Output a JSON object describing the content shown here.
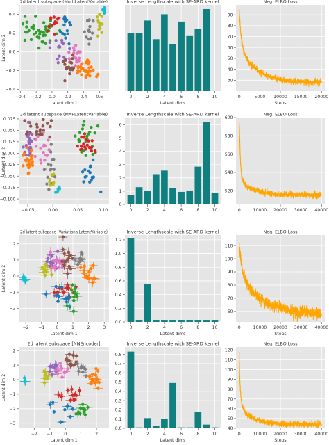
{
  "figure": {
    "background": "#ffffff",
    "panel_bg": "#e5e5e5",
    "grid_color": "#ffffff"
  },
  "colors": {
    "bar": "#0f7f80",
    "loss": "#ffa500",
    "clusters": [
      "#1f77b4",
      "#ff7f0e",
      "#2ca02c",
      "#d62728",
      "#9467bd",
      "#8c564b",
      "#e377c2",
      "#7f7f7f",
      "#bcbd22",
      "#17becf"
    ]
  },
  "chart_data": [
    {
      "type": "scatter",
      "row": 0,
      "col": 0,
      "title": "2d latent subspace (MultiLatentVariable)",
      "xlabel": "Latent dim 1",
      "ylabel": "Latent dim 2",
      "xlim": [
        -0.42,
        0.72
      ],
      "ylim": [
        -0.42,
        0.5
      ],
      "xticks": [
        -0.4,
        -0.2,
        0.0,
        0.2,
        0.4,
        0.6
      ],
      "xtick_labels": [
        "−0.4",
        "−0.2",
        "0.0",
        "0.2",
        "0.4",
        "0.6"
      ],
      "yticks": [
        -0.4,
        -0.2,
        0.0,
        0.2,
        0.4
      ],
      "ytick_labels": [
        "−0.4",
        "−0.2",
        "0.0",
        "0.2",
        "0.4"
      ],
      "errorbars": false,
      "clusters": [
        {
          "color_index": 2,
          "center": [
            -0.17,
            0.21
          ],
          "spread": [
            0.1,
            0.09
          ],
          "n": 42
        },
        {
          "color_index": 3,
          "center": [
            0.01,
            0.3
          ],
          "spread": [
            0.04,
            0.05
          ],
          "n": 14
        },
        {
          "color_index": 0,
          "center": [
            0.17,
            0.27
          ],
          "spread": [
            0.04,
            0.08
          ],
          "n": 18
        },
        {
          "color_index": 4,
          "center": [
            0.07,
            0.02
          ],
          "spread": [
            0.06,
            0.05
          ],
          "n": 16
        },
        {
          "color_index": 6,
          "center": [
            0.3,
            -0.03
          ],
          "spread": [
            0.05,
            0.06
          ],
          "n": 20
        },
        {
          "color_index": 5,
          "center": [
            0.22,
            -0.17
          ],
          "spread": [
            0.05,
            0.06
          ],
          "n": 18
        },
        {
          "color_index": 1,
          "center": [
            0.43,
            -0.19
          ],
          "spread": [
            0.07,
            0.05
          ],
          "n": 34
        },
        {
          "color_index": 7,
          "center": [
            0.45,
            0.22
          ],
          "spread": [
            0.04,
            0.06
          ],
          "n": 14
        },
        {
          "color_index": 8,
          "center": [
            0.6,
            0.34
          ],
          "spread": [
            0.02,
            0.08
          ],
          "n": 14
        },
        {
          "color_index": 9,
          "center": [
            0.66,
            0.45
          ],
          "spread": [
            0.01,
            0.02
          ],
          "n": 6
        }
      ]
    },
    {
      "type": "bar",
      "row": 0,
      "col": 1,
      "title": "Inverse Lengthscale with SE-ARD kernel",
      "xlabel": "Latent dims",
      "ylabel": "",
      "categories": [
        0,
        1,
        2,
        3,
        4,
        5,
        6,
        7,
        8,
        9
      ],
      "values": [
        0.56,
        0.56,
        0.68,
        0.5,
        0.74,
        0.45,
        0.67,
        0.53,
        0.6,
        0.79
      ],
      "xlim": [
        -0.7,
        10.7
      ],
      "ylim": [
        0,
        0.83
      ],
      "xticks": [
        0,
        2,
        4,
        6,
        8,
        10
      ],
      "xtick_labels": [
        "0",
        "2",
        "4",
        "6",
        "8",
        "10"
      ],
      "yticks": [],
      "ytick_labels": []
    },
    {
      "type": "line",
      "row": 0,
      "col": 2,
      "title": "Neg. ELBO Loss",
      "xlabel": "Steps",
      "ylabel": "",
      "xlim": [
        -800,
        20800
      ],
      "ylim": [
        20,
        99
      ],
      "xticks": [
        0,
        5000,
        10000,
        15000,
        20000
      ],
      "xtick_labels": [
        "0",
        "5000",
        "10000",
        "15000",
        "20000"
      ],
      "yticks": [
        30,
        40,
        50,
        60,
        70,
        80,
        90
      ],
      "ytick_labels": [
        "30",
        "40",
        "50",
        "60",
        "70",
        "80",
        "90"
      ],
      "curve": {
        "x_max": 20000,
        "start": 95,
        "final": 28,
        "amp1": 32,
        "tau1": 420,
        "amp2": 35,
        "tau2": 3800,
        "noise": 1.4
      }
    },
    {
      "type": "scatter",
      "row": 1,
      "col": 0,
      "title": "2d latent subspace (MAPLatentVariable)",
      "xlabel": "",
      "ylabel": "Latent dim 2",
      "xlim": [
        -0.068,
        0.112
      ],
      "ylim": [
        -0.112,
        0.078
      ],
      "xticks": [
        -0.05,
        0.0,
        0.05,
        0.1
      ],
      "xtick_labels": [
        "−0.05",
        "0.00",
        "0.05",
        "0.10"
      ],
      "yticks": [
        -0.1,
        -0.075,
        -0.05,
        -0.025,
        0.0,
        0.025,
        0.05,
        0.075
      ],
      "ytick_labels": [
        "−0.100",
        "−0.075",
        "−0.050",
        "−0.025",
        "0.000",
        "0.025",
        "0.050",
        "0.075"
      ],
      "errorbars": false,
      "clusters": [
        {
          "color_index": 5,
          "center": [
            -0.03,
            0.05
          ],
          "spread": [
            0.015,
            0.012
          ],
          "n": 26
        },
        {
          "color_index": 4,
          "center": [
            -0.048,
            0.02
          ],
          "spread": [
            0.006,
            0.018
          ],
          "n": 22
        },
        {
          "color_index": 1,
          "center": [
            -0.05,
            -0.015
          ],
          "spread": [
            0.006,
            0.013
          ],
          "n": 24
        },
        {
          "color_index": 6,
          "center": [
            -0.02,
            0.008
          ],
          "spread": [
            0.012,
            0.02
          ],
          "n": 20
        },
        {
          "color_index": 7,
          "center": [
            -0.003,
            -0.03
          ],
          "spread": [
            0.006,
            0.02
          ],
          "n": 16
        },
        {
          "color_index": 8,
          "center": [
            0.002,
            -0.062
          ],
          "spread": [
            0.005,
            0.012
          ],
          "n": 8
        },
        {
          "color_index": 9,
          "center": [
            0.008,
            -0.078
          ],
          "spread": [
            0.005,
            0.007
          ],
          "n": 6
        },
        {
          "color_index": 2,
          "center": [
            0.07,
            0.035
          ],
          "spread": [
            0.012,
            0.02
          ],
          "n": 24
        },
        {
          "color_index": 3,
          "center": [
            0.065,
            0.015
          ],
          "spread": [
            0.012,
            0.016
          ],
          "n": 20
        },
        {
          "color_index": 0,
          "center": [
            0.078,
            -0.05
          ],
          "spread": [
            0.012,
            0.017
          ],
          "n": 16
        }
      ]
    },
    {
      "type": "bar",
      "row": 1,
      "col": 1,
      "title": "Inverse Lengthscale with SE-ARD kernel",
      "xlabel": "",
      "ylabel": "",
      "categories": [
        0,
        1,
        2,
        3,
        4,
        5,
        6,
        7,
        8,
        9,
        10
      ],
      "values": [
        0.72,
        1.3,
        1.02,
        2.28,
        2.55,
        1.22,
        0.95,
        1.05,
        2.85,
        6.22,
        0.85
      ],
      "xlim": [
        -0.7,
        10.7
      ],
      "ylim": [
        0,
        6.55
      ],
      "xticks": [
        0,
        2,
        4,
        6,
        8,
        10
      ],
      "xtick_labels": [
        "0",
        "2",
        "4",
        "6",
        "8",
        "10"
      ],
      "yticks": [
        0,
        1,
        2,
        3,
        4,
        5,
        6
      ],
      "ytick_labels": [
        "0",
        "1",
        "2",
        "3",
        "4",
        "5",
        "6"
      ]
    },
    {
      "type": "line",
      "row": 1,
      "col": 2,
      "title": "Neg. ELBO Loss",
      "xlabel": "",
      "ylabel": "",
      "xlim": [
        -1600,
        41600
      ],
      "ylim": [
        505,
        600
      ],
      "xticks": [
        0,
        10000,
        20000,
        30000,
        40000
      ],
      "xtick_labels": [
        "0",
        "10000",
        "20000",
        "30000",
        "40000"
      ],
      "yticks": [
        520,
        540,
        560,
        580,
        600
      ],
      "ytick_labels": [
        "520",
        "540",
        "560",
        "580",
        "600"
      ],
      "curve": {
        "x_max": 40000,
        "start": 595,
        "final": 515,
        "amp1": 62,
        "tau1": 550,
        "amp2": 18,
        "tau2": 7000,
        "noise": 1.6
      }
    },
    {
      "type": "scatter",
      "row": 2,
      "col": 0,
      "title": "2d latent subspace (VariationalLatentVariable)",
      "xlabel": "Latent dim 1",
      "ylabel": "Latent dim 2",
      "xlim": [
        -2.45,
        3.3
      ],
      "ylim": [
        -2.85,
        2.55
      ],
      "xticks": [
        -2,
        -1,
        0,
        1,
        2,
        3
      ],
      "xtick_labels": [
        "−2",
        "−1",
        "0",
        "1",
        "2",
        "3"
      ],
      "yticks": [
        -2,
        -1,
        0,
        1,
        2
      ],
      "ytick_labels": [
        "−2",
        "−1",
        "0",
        "1",
        "2"
      ],
      "errorbars": true,
      "clusters": [
        {
          "color_index": 9,
          "center": [
            -2.1,
            -0.3
          ],
          "spread": [
            0.05,
            0.15
          ],
          "n": 6
        },
        {
          "color_index": 8,
          "center": [
            -0.7,
            0.5
          ],
          "spread": [
            0.22,
            0.3
          ],
          "n": 10
        },
        {
          "color_index": 4,
          "center": [
            -0.3,
            0.8
          ],
          "spread": [
            0.22,
            0.3
          ],
          "n": 12
        },
        {
          "color_index": 6,
          "center": [
            0.0,
            0.7
          ],
          "spread": [
            0.28,
            0.3
          ],
          "n": 14
        },
        {
          "color_index": 5,
          "center": [
            0.6,
            1.2
          ],
          "spread": [
            0.2,
            0.4
          ],
          "n": 16
        },
        {
          "color_index": 7,
          "center": [
            1.4,
            1.0
          ],
          "spread": [
            0.2,
            0.25
          ],
          "n": 8
        },
        {
          "color_index": 1,
          "center": [
            2.0,
            0.2
          ],
          "spread": [
            0.3,
            0.5
          ],
          "n": 16
        },
        {
          "color_index": 3,
          "center": [
            0.5,
            -0.9
          ],
          "spread": [
            0.28,
            0.28
          ],
          "n": 14
        },
        {
          "color_index": 0,
          "center": [
            0.3,
            -1.3
          ],
          "spread": [
            0.35,
            0.3
          ],
          "n": 12
        },
        {
          "color_index": 2,
          "center": [
            1.1,
            -1.1
          ],
          "spread": [
            0.2,
            0.35
          ],
          "n": 10
        }
      ]
    },
    {
      "type": "bar",
      "row": 2,
      "col": 1,
      "title": "Inverse Lengthscale with SE-ARD kernel",
      "xlabel": "Latent dims",
      "ylabel": "",
      "categories": [
        0,
        1,
        2,
        3,
        4,
        5,
        6,
        7,
        8,
        9,
        10
      ],
      "values": [
        1.22,
        0.03,
        0.55,
        0.03,
        0.03,
        0.03,
        0.03,
        0.03,
        0.03,
        0.03,
        0.03
      ],
      "xlim": [
        -0.7,
        10.7
      ],
      "ylim": [
        0,
        1.27
      ],
      "xticks": [
        0,
        2,
        4,
        6,
        8,
        10
      ],
      "xtick_labels": [
        "0",
        "2",
        "4",
        "6",
        "8",
        "10"
      ],
      "yticks": [
        0.0,
        0.2,
        0.4,
        0.6,
        0.8,
        1.0,
        1.2
      ],
      "ytick_labels": [
        "0.0",
        "0.2",
        "0.4",
        "0.6",
        "0.8",
        "1.0",
        "1.2"
      ]
    },
    {
      "type": "line",
      "row": 2,
      "col": 2,
      "title": "Neg. ELBO Loss",
      "xlabel": "Steps",
      "ylabel": "",
      "xlim": [
        -1600,
        41600
      ],
      "ylim": [
        52,
        118
      ],
      "xticks": [
        0,
        10000,
        20000,
        30000,
        40000
      ],
      "xtick_labels": [
        "0",
        "10000",
        "20000",
        "30000",
        "40000"
      ],
      "yticks": [
        60,
        70,
        80,
        90,
        100,
        110
      ],
      "ytick_labels": [
        "60",
        "70",
        "80",
        "90",
        "100",
        "110"
      ],
      "curve": {
        "x_max": 40000,
        "start": 112,
        "final": 57,
        "amp1": 22,
        "tau1": 1500,
        "amp2": 30,
        "tau2": 12000,
        "noise": 2.2
      }
    },
    {
      "type": "scatter",
      "row": 3,
      "col": 0,
      "title": "2d latent subspace [NNEncoder]",
      "xlabel": "Latent dim 1",
      "ylabel": "Latent dim 2",
      "xlim": [
        -3.0,
        2.8
      ],
      "ylim": [
        -3.35,
        2.25
      ],
      "xticks": [
        -2,
        -1,
        0,
        1,
        2
      ],
      "xtick_labels": [
        "−2",
        "−1",
        "0",
        "1",
        "2"
      ],
      "yticks": [
        -3,
        -2,
        -1,
        0,
        1,
        2
      ],
      "ytick_labels": [
        "−3",
        "−2",
        "−1",
        "0",
        "1",
        "2"
      ],
      "errorbars": true,
      "clusters": [
        {
          "color_index": 9,
          "center": [
            -2.6,
            -0.1
          ],
          "spread": [
            0.04,
            0.12
          ],
          "n": 5
        },
        {
          "color_index": 8,
          "center": [
            -1.2,
            0.2
          ],
          "spread": [
            0.15,
            0.35
          ],
          "n": 9
        },
        {
          "color_index": 4,
          "center": [
            -0.8,
            0.8
          ],
          "spread": [
            0.2,
            0.25
          ],
          "n": 10
        },
        {
          "color_index": 6,
          "center": [
            -0.3,
            0.6
          ],
          "spread": [
            0.25,
            0.3
          ],
          "n": 10
        },
        {
          "color_index": 5,
          "center": [
            0.5,
            1.3
          ],
          "spread": [
            0.25,
            0.3
          ],
          "n": 14
        },
        {
          "color_index": 7,
          "center": [
            1.0,
            0.7
          ],
          "spread": [
            0.2,
            0.25
          ],
          "n": 8
        },
        {
          "color_index": 1,
          "center": [
            1.9,
            0.2
          ],
          "spread": [
            0.25,
            0.45
          ],
          "n": 14
        },
        {
          "color_index": 3,
          "center": [
            0.3,
            -1.1
          ],
          "spread": [
            0.3,
            0.25
          ],
          "n": 12
        },
        {
          "color_index": 0,
          "center": [
            -0.4,
            -2.0
          ],
          "spread": [
            0.35,
            0.35
          ],
          "n": 10
        },
        {
          "color_index": 2,
          "center": [
            1.0,
            -2.0
          ],
          "spread": [
            0.25,
            0.4
          ],
          "n": 12
        }
      ]
    },
    {
      "type": "bar",
      "row": 3,
      "col": 1,
      "title": "Inverse Lengthscale with SE-ARD kernel",
      "xlabel": "Latent dims",
      "ylabel": "",
      "categories": [
        0,
        1,
        2,
        3,
        4,
        5,
        6,
        7,
        8,
        9,
        10
      ],
      "values": [
        0.83,
        0.01,
        0.11,
        0.03,
        0.1,
        0.49,
        0.01,
        0.01,
        0.18,
        0.04,
        0.01
      ],
      "xlim": [
        -0.7,
        10.7
      ],
      "ylim": [
        0,
        0.88
      ],
      "xticks": [
        0,
        2,
        4,
        6,
        8,
        10
      ],
      "xtick_labels": [
        "0",
        "2",
        "4",
        "6",
        "8",
        "10"
      ],
      "yticks": [
        0.0,
        0.1,
        0.2,
        0.3,
        0.4,
        0.5,
        0.6,
        0.7,
        0.8
      ],
      "ytick_labels": [
        "0.0",
        "0.1",
        "0.2",
        "0.3",
        "0.4",
        "0.5",
        "0.6",
        "0.7",
        "0.8"
      ]
    },
    {
      "type": "line",
      "row": 3,
      "col": 2,
      "title": "Neg. ELBO Loss",
      "xlabel": "Steps",
      "ylabel": "",
      "xlim": [
        -1600,
        41600
      ],
      "ylim": [
        40,
        123
      ],
      "xticks": [
        0,
        10000,
        20000,
        30000,
        40000
      ],
      "xtick_labels": [
        "0",
        "10000",
        "20000",
        "30000",
        "40000"
      ],
      "yticks": [
        40,
        50,
        60,
        70,
        80,
        90,
        100,
        110,
        120
      ],
      "ytick_labels": [
        "40",
        "50",
        "60",
        "70",
        "80",
        "90",
        "100",
        "110",
        "120"
      ],
      "curve": {
        "x_max": 40000,
        "start": 118,
        "final": 44,
        "amp1": 45,
        "tau1": 550,
        "amp2": 20,
        "tau2": 6000,
        "noise": 1.5
      }
    }
  ]
}
